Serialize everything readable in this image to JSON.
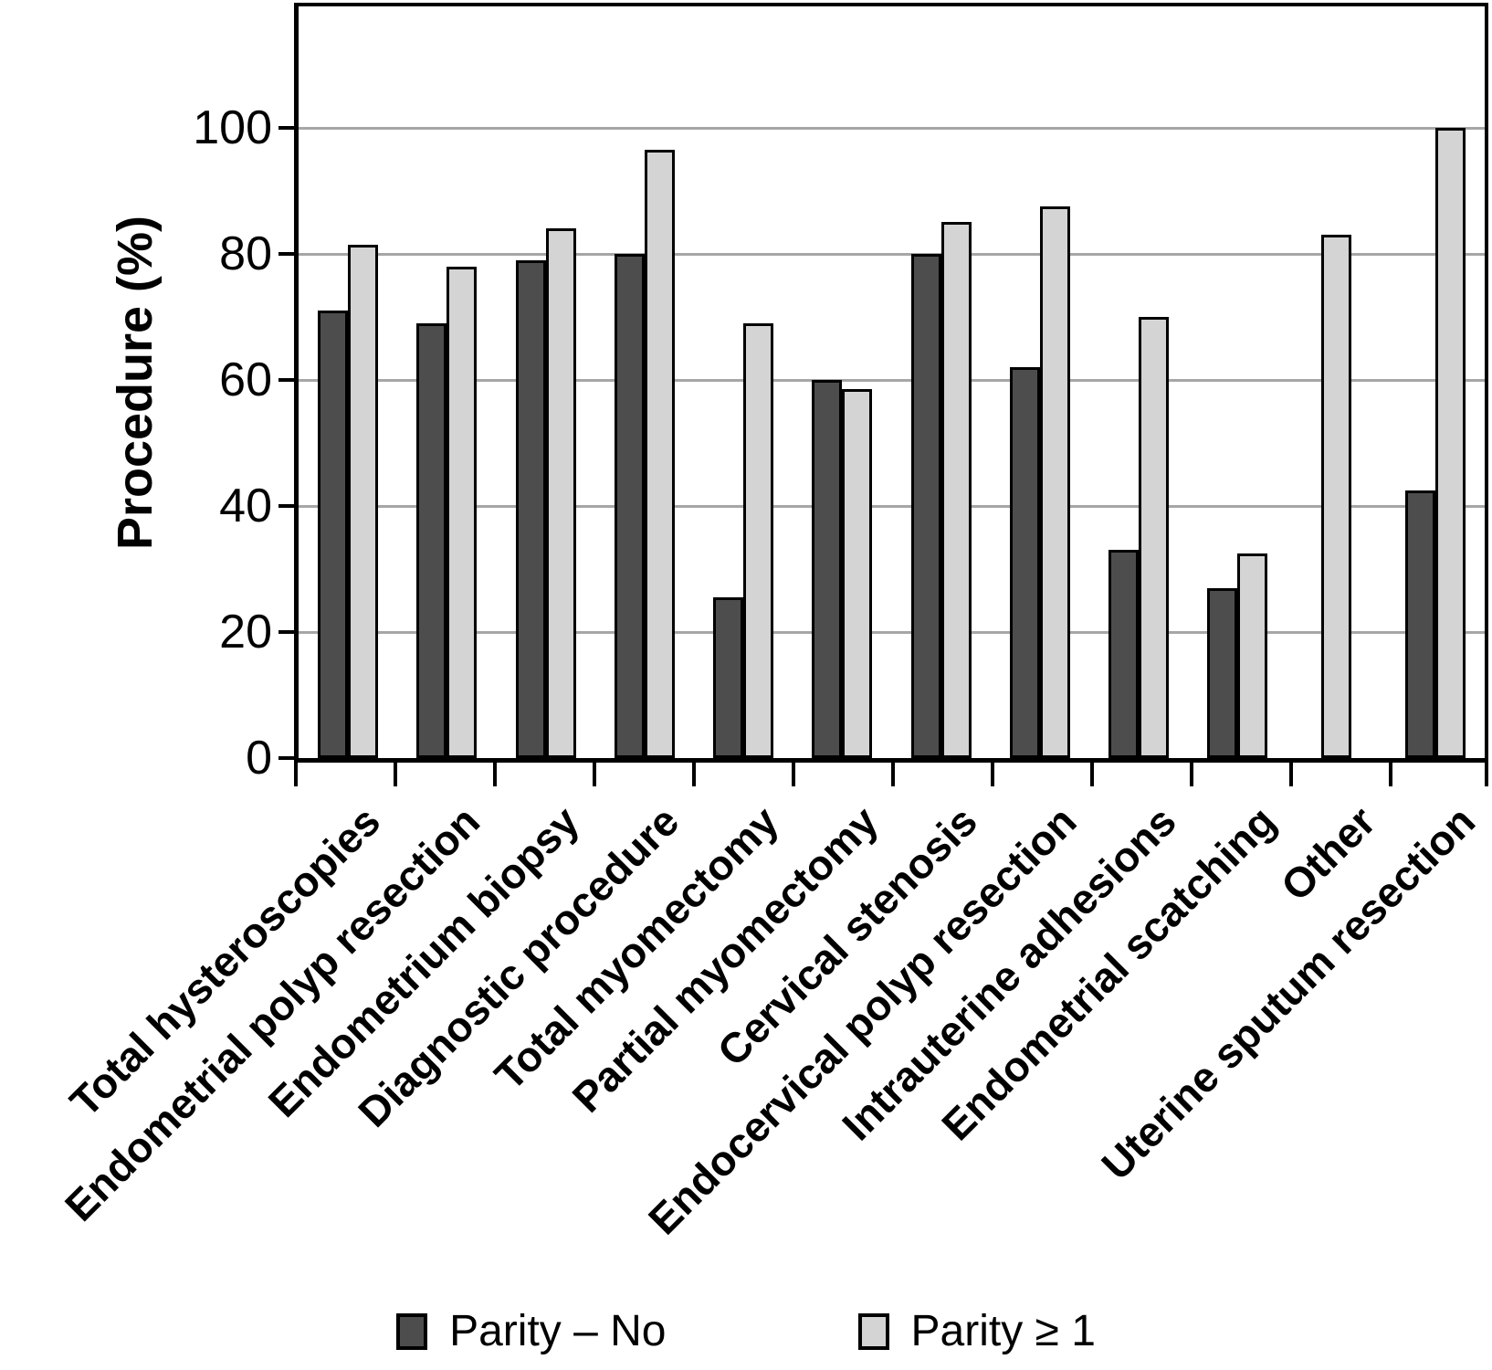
{
  "chart_data": {
    "type": "bar",
    "title": "",
    "ylabel": "Procedure (%)",
    "xlabel": "",
    "ylim": [
      0,
      120
    ],
    "yticks": [
      0,
      20,
      40,
      60,
      80,
      100
    ],
    "grid": "horizontal",
    "legend_position": "bottom",
    "categories": [
      "Total hysteroscopies",
      "Endometrial polyp resection",
      "Endometrium biopsy",
      "Diagnostic procedure",
      "Total myomectomy",
      "Partial myomectomy",
      "Cervical stenosis",
      "Endocervical polyp resection",
      "Intrauterine adhesions",
      "Endometrial scatching",
      "Other",
      "Uterine sputum resection"
    ],
    "series": [
      {
        "name": "Parity – No",
        "color": "#4d4d4d",
        "values": [
          71,
          69,
          79,
          80,
          25.5,
          60,
          80,
          62,
          33,
          27,
          0,
          42.5
        ]
      },
      {
        "name": "Parity ≥ 1",
        "color": "#d4d4d4",
        "values": [
          81.5,
          78,
          84,
          96.5,
          69,
          58.5,
          85,
          87.5,
          70,
          32.5,
          83,
          100
        ]
      }
    ],
    "colors": {
      "gridline": "#a6a6a6",
      "axis": "#000000",
      "background": "#ffffff"
    }
  }
}
